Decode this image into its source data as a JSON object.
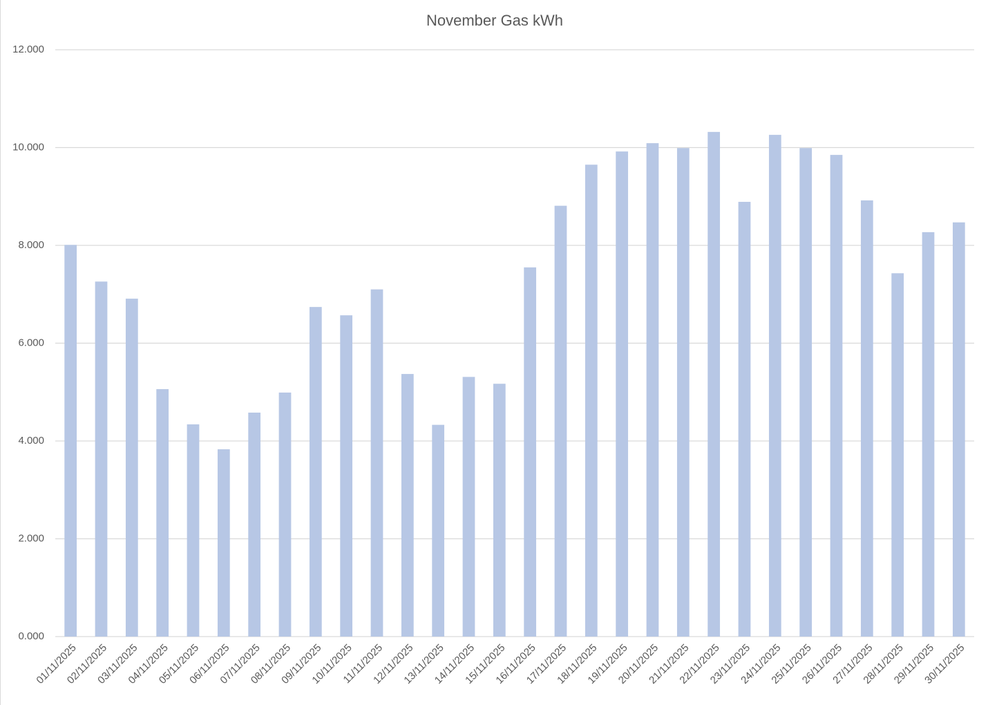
{
  "chart_data": {
    "type": "bar",
    "title": "November Gas kWh",
    "categories": [
      "01/11/2025",
      "02/11/2025",
      "03/11/2025",
      "04/11/2025",
      "05/11/2025",
      "06/11/2025",
      "07/11/2025",
      "08/11/2025",
      "09/11/2025",
      "10/11/2025",
      "11/11/2025",
      "12/11/2025",
      "13/11/2025",
      "14/11/2025",
      "15/11/2025",
      "16/11/2025",
      "17/11/2025",
      "18/11/2025",
      "19/11/2025",
      "20/11/2025",
      "21/11/2025",
      "22/11/2025",
      "23/11/2025",
      "24/11/2025",
      "25/11/2025",
      "26/11/2025",
      "27/11/2025",
      "28/11/2025",
      "29/11/2025",
      "30/11/2025"
    ],
    "values": [
      8.01,
      7.26,
      6.91,
      5.06,
      4.34,
      3.83,
      4.58,
      4.99,
      6.74,
      6.57,
      7.1,
      5.37,
      4.33,
      5.31,
      5.17,
      7.55,
      8.81,
      9.65,
      9.92,
      10.09,
      9.99,
      10.32,
      8.89,
      10.26,
      9.99,
      9.85,
      8.92,
      7.43,
      8.27,
      8.47
    ],
    "color": "#b7c7e5",
    "ylim": [
      0,
      12
    ],
    "yticks": [
      {
        "value": 0,
        "label": "0.000"
      },
      {
        "value": 2,
        "label": "2.000"
      },
      {
        "value": 4,
        "label": "4.000"
      },
      {
        "value": 6,
        "label": "6.000"
      },
      {
        "value": 8,
        "label": "8.000"
      },
      {
        "value": 10,
        "label": "10.000"
      },
      {
        "value": 12,
        "label": "12.000"
      }
    ],
    "grid": true
  }
}
